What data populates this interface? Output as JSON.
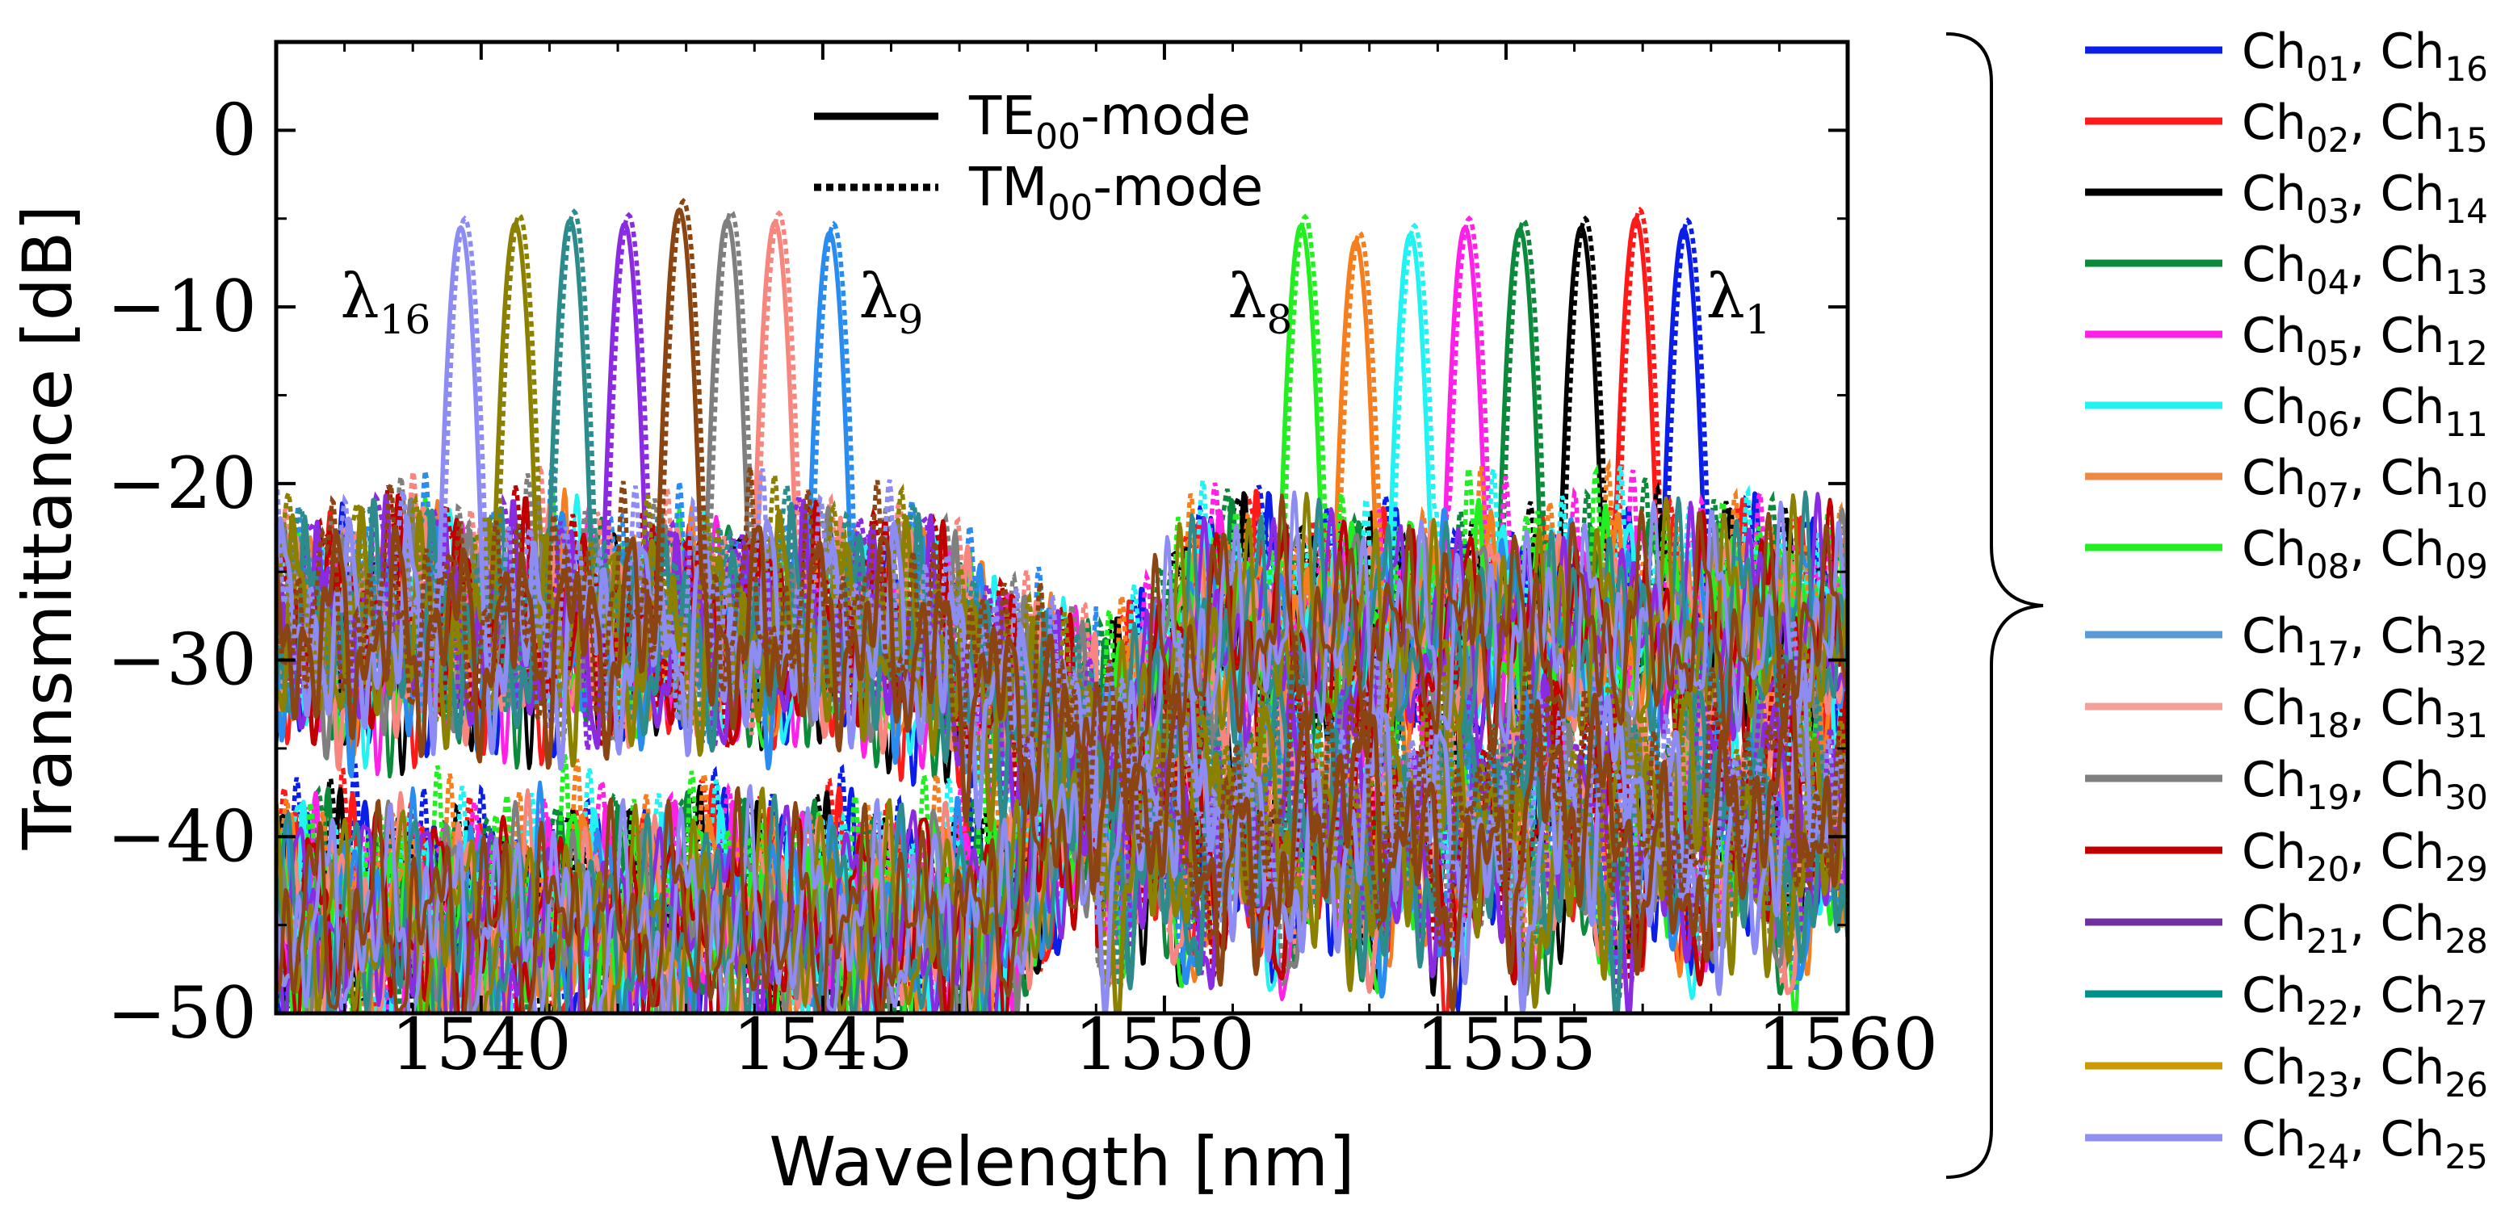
{
  "chart_data": {
    "type": "line",
    "title": "",
    "xlabel": "Wavelength [nm]",
    "ylabel": "Transmittance [dB]",
    "xlim": [
      1537,
      1560
    ],
    "ylim": [
      -50,
      5
    ],
    "xticks": [
      1540,
      1545,
      1550,
      1555,
      1560
    ],
    "xtick_labels": [
      "1540",
      "1545",
      "1550",
      "1555",
      "1560"
    ],
    "yticks": [
      0,
      -10,
      -20,
      -30,
      -40,
      -50
    ],
    "ytick_labels": [
      "0",
      "−10",
      "−20",
      "−30",
      "−40",
      "−50"
    ],
    "mode_legend": [
      {
        "base": "TE",
        "sub": "00",
        "suffix": "-mode",
        "style": "solid"
      },
      {
        "base": "TM",
        "sub": "00",
        "suffix": "-mode",
        "style": "dotted"
      }
    ],
    "annotations": [
      {
        "base": "λ",
        "sub": "16",
        "x": 1538.6,
        "y": -9.5
      },
      {
        "base": "λ",
        "sub": "9",
        "x": 1546.0,
        "y": -9.5
      },
      {
        "base": "λ",
        "sub": "8",
        "x": 1551.4,
        "y": -9.5
      },
      {
        "base": "λ",
        "sub": "1",
        "x": 1558.4,
        "y": -9.5
      }
    ],
    "series": [
      {
        "name": "Ch01, Ch16",
        "label_a": "01",
        "label_b": "16",
        "color": "#0a1ee8",
        "peaks": [
          {
            "x": 1557.6,
            "y": -5.6
          }
        ]
      },
      {
        "name": "Ch02, Ch15",
        "label_a": "02",
        "label_b": "15",
        "color": "#ff1a1a",
        "peaks": [
          {
            "x": 1556.9,
            "y": -5.0
          }
        ]
      },
      {
        "name": "Ch03, Ch14",
        "label_a": "03",
        "label_b": "14",
        "color": "#000000",
        "peaks": [
          {
            "x": 1556.1,
            "y": -5.5
          }
        ]
      },
      {
        "name": "Ch04, Ch13",
        "label_a": "04",
        "label_b": "13",
        "color": "#0c8a3c",
        "peaks": [
          {
            "x": 1555.2,
            "y": -5.6
          }
        ]
      },
      {
        "name": "Ch05, Ch12",
        "label_a": "05",
        "label_b": "12",
        "color": "#ff22e6",
        "peaks": [
          {
            "x": 1554.4,
            "y": -5.5
          }
        ]
      },
      {
        "name": "Ch06, Ch11",
        "label_a": "06",
        "label_b": "11",
        "color": "#22f2f2",
        "peaks": [
          {
            "x": 1553.6,
            "y": -5.9
          }
        ]
      },
      {
        "name": "Ch07, Ch10",
        "label_a": "07",
        "label_b": "10",
        "color": "#f57f1e",
        "peaks": [
          {
            "x": 1552.8,
            "y": -6.3
          }
        ]
      },
      {
        "name": "Ch08, Ch09",
        "label_a": "08",
        "label_b": "09",
        "color": "#22ee22",
        "peaks": [
          {
            "x": 1552.0,
            "y": -5.4
          }
        ]
      },
      {
        "name": "Ch17, Ch32",
        "label_a": "17",
        "label_b": "32",
        "color": "#2a8cef",
        "peaks": [
          {
            "x": 1545.1,
            "y": -5.8
          }
        ]
      },
      {
        "name": "Ch18, Ch31",
        "label_a": "18",
        "label_b": "31",
        "color": "#f7867e",
        "peaks": [
          {
            "x": 1544.3,
            "y": -5.2
          }
        ]
      },
      {
        "name": "Ch19, Ch30",
        "label_a": "19",
        "label_b": "30",
        "color": "#7f7f7f",
        "peaks": [
          {
            "x": 1543.6,
            "y": -5.1
          }
        ]
      },
      {
        "name": "Ch20, Ch29",
        "label_a": "20",
        "label_b": "29",
        "color": "#c00000",
        "peaks": [
          {
            "x": 1547.8,
            "y": -40.0
          }
        ]
      },
      {
        "name": "Ch21, Ch28",
        "label_a": "21",
        "label_b": "28",
        "color": "#8a2be2",
        "peaks": [
          {
            "x": 1542.1,
            "y": -5.3
          }
        ]
      },
      {
        "name": "Ch22, Ch27",
        "label_a": "22",
        "label_b": "27",
        "color": "#2e8b8b",
        "peaks": [
          {
            "x": 1541.3,
            "y": -5.1
          }
        ]
      },
      {
        "name": "Ch23, Ch26",
        "label_a": "23",
        "label_b": "26",
        "color": "#8b8000",
        "peaks": [
          {
            "x": 1540.5,
            "y": -5.3
          }
        ]
      },
      {
        "name": "Ch24, Ch25",
        "label_a": "24",
        "label_b": "25",
        "color": "#8d8cf2",
        "peaks": [
          {
            "x": 1539.7,
            "y": -5.5
          }
        ]
      }
    ],
    "extra_curves": [
      {
        "name": "brown",
        "color": "#8b4513",
        "peaks": [
          {
            "x": 1542.9,
            "y": -4.5
          }
        ]
      }
    ],
    "legend_items": [
      {
        "label_a": "01",
        "label_b": "16",
        "color": "#0a1ee8"
      },
      {
        "label_a": "02",
        "label_b": "15",
        "color": "#ff1a1a"
      },
      {
        "label_a": "03",
        "label_b": "14",
        "color": "#000000"
      },
      {
        "label_a": "04",
        "label_b": "13",
        "color": "#0c8a3c"
      },
      {
        "label_a": "05",
        "label_b": "12",
        "color": "#ff22e6"
      },
      {
        "label_a": "06",
        "label_b": "11",
        "color": "#22f2f2"
      },
      {
        "label_a": "07",
        "label_b": "10",
        "color": "#ee8844"
      },
      {
        "label_a": "08",
        "label_b": "09",
        "color": "#22ee22"
      },
      {
        "label_a": "17",
        "label_b": "32",
        "color": "#5b9bd5"
      },
      {
        "label_a": "18",
        "label_b": "31",
        "color": "#f4a09a"
      },
      {
        "label_a": "19",
        "label_b": "30",
        "color": "#7f7f7f"
      },
      {
        "label_a": "20",
        "label_b": "29",
        "color": "#c00000"
      },
      {
        "label_a": "21",
        "label_b": "28",
        "color": "#7030a0"
      },
      {
        "label_a": "22",
        "label_b": "27",
        "color": "#00908a"
      },
      {
        "label_a": "23",
        "label_b": "26",
        "color": "#cc9900"
      },
      {
        "label_a": "24",
        "label_b": "25",
        "color": "#9090f0"
      }
    ],
    "legend_prefix": "Ch",
    "legend_separator": ", ",
    "legend_position": "right, outside plot"
  }
}
